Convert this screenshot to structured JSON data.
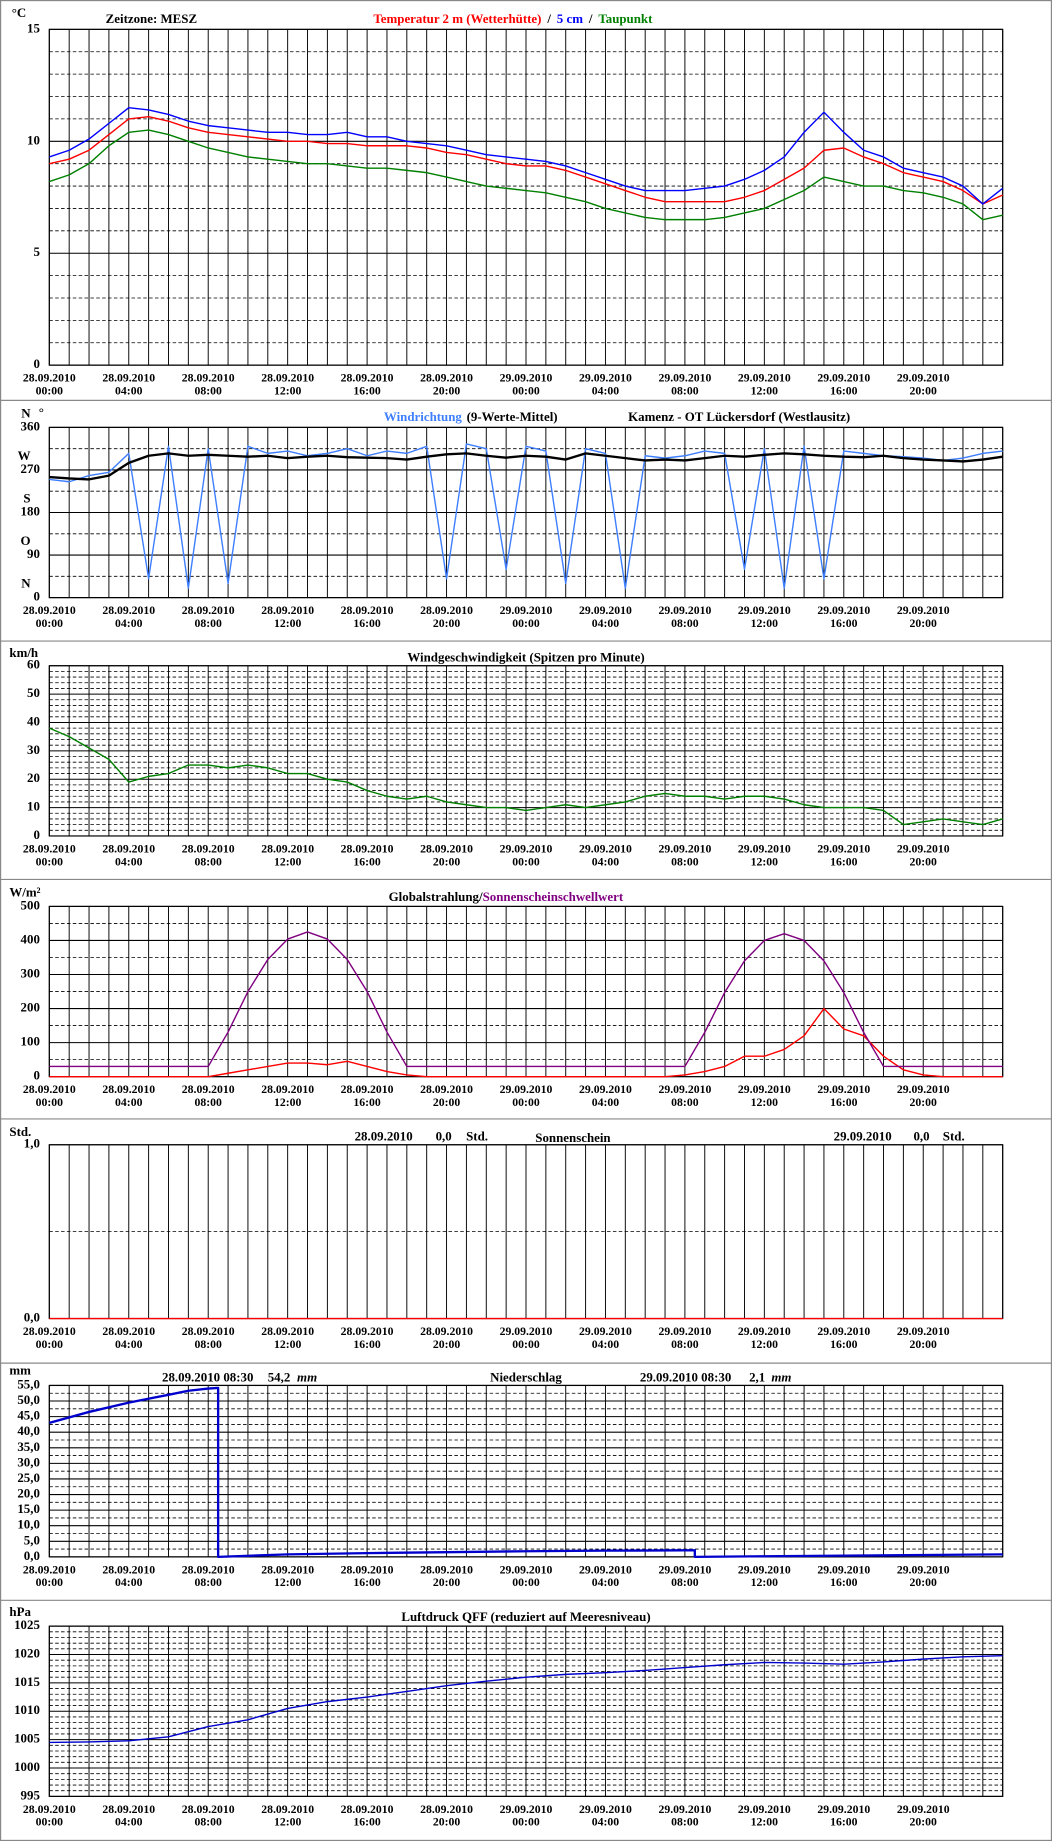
{
  "x_axis": {
    "xlim": [
      0,
      48
    ],
    "xticks": [
      {
        "value": 0,
        "label": "28.09.2010\n00:00"
      },
      {
        "value": 4,
        "label": "28.09.2010\n04:00"
      },
      {
        "value": 8,
        "label": "28.09.2010\n08:00"
      },
      {
        "value": 12,
        "label": "28.09.2010\n12:00"
      },
      {
        "value": 16,
        "label": "28.09.2010\n16:00"
      },
      {
        "value": 20,
        "label": "28.09.2010\n20:00"
      },
      {
        "value": 24,
        "label": "29.09.2010\n00:00"
      },
      {
        "value": 28,
        "label": "29.09.2010\n04:00"
      },
      {
        "value": 32,
        "label": "29.09.2010\n08:00"
      },
      {
        "value": 36,
        "label": "29.09.2010\n12:00"
      },
      {
        "value": 40,
        "label": "29.09.2010\n16:00"
      },
      {
        "value": 44,
        "label": "29.09.2010\n20:00"
      }
    ],
    "xgrid": [
      0,
      1,
      2,
      3,
      4,
      5,
      6,
      7,
      8,
      9,
      10,
      11,
      12,
      13,
      14,
      15,
      16,
      17,
      18,
      19,
      20,
      21,
      22,
      23,
      24,
      25,
      26,
      27,
      28,
      29,
      30,
      31,
      32,
      33,
      34,
      35,
      36,
      37,
      38,
      39,
      40,
      41,
      42,
      43,
      44,
      45,
      46,
      47,
      48
    ]
  },
  "chart_data": [
    {
      "type": "line",
      "y_unit": "°C",
      "annotations": [
        "Zeitzone: MESZ"
      ],
      "separator": "/",
      "ylim": [
        0,
        15
      ],
      "yticks": [
        0,
        5,
        10,
        15
      ],
      "minor_yticks": [
        1,
        2,
        3,
        4,
        6,
        7,
        8,
        9,
        11,
        12,
        13,
        14
      ],
      "x": [
        0,
        1,
        2,
        3,
        4,
        5,
        6,
        7,
        8,
        9,
        10,
        11,
        12,
        13,
        14,
        15,
        16,
        17,
        18,
        19,
        20,
        21,
        22,
        23,
        24,
        25,
        26,
        27,
        28,
        29,
        30,
        31,
        32,
        33,
        34,
        35,
        36,
        37,
        38,
        39,
        40,
        41,
        42,
        43,
        44,
        45,
        46,
        47,
        48
      ],
      "series": [
        {
          "name": "Temperatur 2 m (Wetterhütte)",
          "color": "#ff0000",
          "values": [
            9.0,
            9.2,
            9.6,
            10.3,
            11.0,
            11.1,
            10.9,
            10.6,
            10.4,
            10.3,
            10.2,
            10.1,
            10.0,
            10.0,
            9.9,
            9.9,
            9.8,
            9.8,
            9.8,
            9.7,
            9.5,
            9.4,
            9.2,
            9.0,
            8.9,
            8.9,
            8.7,
            8.4,
            8.1,
            7.8,
            7.5,
            7.3,
            7.3,
            7.3,
            7.3,
            7.5,
            7.8,
            8.3,
            8.8,
            9.6,
            9.7,
            9.3,
            9.0,
            8.6,
            8.4,
            8.2,
            7.8,
            7.2,
            7.6
          ]
        },
        {
          "name": "5 cm",
          "color": "#0000ff",
          "values": [
            9.3,
            9.6,
            10.1,
            10.8,
            11.5,
            11.4,
            11.2,
            10.9,
            10.7,
            10.6,
            10.5,
            10.4,
            10.4,
            10.3,
            10.3,
            10.4,
            10.2,
            10.2,
            10.0,
            9.9,
            9.8,
            9.6,
            9.4,
            9.3,
            9.2,
            9.1,
            8.9,
            8.6,
            8.3,
            8.0,
            7.8,
            7.8,
            7.8,
            7.9,
            8.0,
            8.3,
            8.7,
            9.3,
            10.4,
            11.3,
            10.4,
            9.6,
            9.3,
            8.8,
            8.6,
            8.4,
            8.0,
            7.2,
            7.9
          ]
        },
        {
          "name": "Taupunkt",
          "color": "#008000",
          "values": [
            8.2,
            8.5,
            9.0,
            9.8,
            10.4,
            10.5,
            10.3,
            10.0,
            9.7,
            9.5,
            9.3,
            9.2,
            9.1,
            9.0,
            9.0,
            8.9,
            8.8,
            8.8,
            8.7,
            8.6,
            8.4,
            8.2,
            8.0,
            7.9,
            7.8,
            7.7,
            7.5,
            7.3,
            7.0,
            6.8,
            6.6,
            6.5,
            6.5,
            6.5,
            6.6,
            6.8,
            7.0,
            7.4,
            7.8,
            8.4,
            8.2,
            8.0,
            8.0,
            7.8,
            7.7,
            7.5,
            7.2,
            6.5,
            6.7
          ]
        }
      ]
    },
    {
      "type": "line",
      "y_unit": "°",
      "annotations": [
        "Kamenz - OT Lückersdorf (Westlausitz)"
      ],
      "ylim": [
        0,
        360
      ],
      "yticks": [
        0,
        90,
        180,
        270,
        360
      ],
      "ytick_names": [
        "N",
        "O",
        "S",
        "W",
        "N"
      ],
      "minor_yticks": [
        45,
        135,
        225,
        315
      ],
      "x": [
        0,
        1,
        2,
        3,
        4,
        5,
        6,
        7,
        8,
        9,
        10,
        11,
        12,
        13,
        14,
        15,
        16,
        17,
        18,
        19,
        20,
        21,
        22,
        23,
        24,
        25,
        26,
        27,
        28,
        29,
        30,
        31,
        32,
        33,
        34,
        35,
        36,
        37,
        38,
        39,
        40,
        41,
        42,
        43,
        44,
        45,
        46,
        47,
        48
      ],
      "series": [
        {
          "name": "Windrichtung",
          "color": "#3f7fff",
          "values": [
            250,
            245,
            258,
            265,
            305,
            40,
            320,
            20,
            315,
            30,
            320,
            305,
            310,
            300,
            305,
            315,
            300,
            310,
            305,
            320,
            40,
            325,
            315,
            60,
            320,
            310,
            30,
            315,
            305,
            20,
            300,
            295,
            300,
            310,
            305,
            60,
            315,
            20,
            320,
            40,
            310,
            305,
            300,
            298,
            295,
            290,
            295,
            305,
            310
          ]
        },
        {
          "name": "(9-Werte-Mittel)",
          "color": "#000000",
          "values": [
            255,
            252,
            250,
            258,
            285,
            300,
            305,
            300,
            302,
            300,
            298,
            300,
            295,
            298,
            300,
            297,
            296,
            295,
            292,
            298,
            303,
            305,
            300,
            296,
            300,
            298,
            292,
            305,
            300,
            295,
            290,
            292,
            290,
            295,
            300,
            298,
            302,
            305,
            303,
            300,
            298,
            297,
            300,
            295,
            292,
            290,
            288,
            292,
            298
          ]
        }
      ]
    },
    {
      "type": "line",
      "title": "Windgeschwindigkeit (Spitzen pro Minute)",
      "y_unit": "km/h",
      "ylim": [
        0,
        60
      ],
      "yticks": [
        0,
        10,
        20,
        30,
        40,
        50,
        60
      ],
      "minor_yticks": [
        2,
        4,
        6,
        8,
        12,
        14,
        16,
        18,
        22,
        24,
        26,
        28,
        32,
        34,
        36,
        38,
        42,
        44,
        46,
        48,
        52,
        54,
        56,
        58
      ],
      "x": [
        0,
        1,
        2,
        3,
        4,
        5,
        6,
        7,
        8,
        9,
        10,
        11,
        12,
        13,
        14,
        15,
        16,
        17,
        18,
        19,
        20,
        21,
        22,
        23,
        24,
        25,
        26,
        27,
        28,
        29,
        30,
        31,
        32,
        33,
        34,
        35,
        36,
        37,
        38,
        39,
        40,
        41,
        42,
        43,
        44,
        45,
        46,
        47,
        48
      ],
      "series": [
        {
          "color": "#008000",
          "values": [
            38,
            35,
            31,
            27,
            19,
            21,
            22,
            25,
            25,
            24,
            25,
            24,
            22,
            22,
            20,
            19,
            16,
            14,
            13,
            14,
            12,
            11,
            10,
            10,
            9,
            10,
            11,
            10,
            11,
            12,
            14,
            15,
            14,
            14,
            13,
            14,
            14,
            13,
            11,
            10,
            10,
            10,
            9,
            4,
            5,
            6,
            5,
            4,
            6
          ]
        }
      ]
    },
    {
      "type": "line",
      "y_unit": "W/m²",
      "separator": "/",
      "ylim": [
        0,
        500
      ],
      "yticks": [
        0,
        100,
        200,
        300,
        400,
        500
      ],
      "minor_yticks": [
        50,
        150,
        250,
        350,
        450
      ],
      "x": [
        0,
        1,
        2,
        3,
        4,
        5,
        6,
        7,
        8,
        9,
        10,
        11,
        12,
        13,
        14,
        15,
        16,
        17,
        18,
        19,
        20,
        21,
        22,
        23,
        24,
        25,
        26,
        27,
        28,
        29,
        30,
        31,
        32,
        33,
        34,
        35,
        36,
        37,
        38,
        39,
        40,
        41,
        42,
        43,
        44,
        45,
        46,
        47,
        48
      ],
      "series": [
        {
          "name": "Globalstrahlung",
          "color": "#ff0000",
          "legend_color": "#000000",
          "values": [
            0,
            0,
            0,
            0,
            0,
            0,
            0,
            0,
            0,
            10,
            20,
            30,
            40,
            40,
            35,
            45,
            30,
            15,
            5,
            0,
            0,
            0,
            0,
            0,
            0,
            0,
            0,
            0,
            0,
            0,
            0,
            0,
            5,
            15,
            30,
            60,
            60,
            80,
            120,
            200,
            140,
            120,
            60,
            20,
            5,
            0,
            0,
            0,
            0
          ]
        },
        {
          "name": "Sonnenscheinschwellwert",
          "color": "#800080",
          "values": [
            30,
            30,
            30,
            30,
            30,
            30,
            30,
            30,
            30,
            131,
            250,
            344,
            404,
            425,
            404,
            344,
            250,
            131,
            30,
            30,
            30,
            30,
            30,
            30,
            30,
            30,
            30,
            30,
            30,
            30,
            30,
            30,
            30,
            130,
            247,
            340,
            400,
            420,
            400,
            340,
            247,
            130,
            30,
            30,
            30,
            30,
            30,
            30,
            30
          ]
        }
      ]
    },
    {
      "type": "line",
      "title": "Sonnenschein",
      "y_unit": "Std.",
      "annotations": [
        "28.09.2010",
        "0,0",
        "Std.",
        "29.09.2010",
        "0,0",
        "Std."
      ],
      "ylim": [
        0,
        1
      ],
      "yticks": [
        {
          "value": 0,
          "label": "0,0"
        },
        {
          "value": 1,
          "label": "1,0"
        }
      ],
      "minor_yticks": [
        0.5
      ],
      "x": [
        0,
        1,
        2,
        3,
        4,
        5,
        6,
        7,
        8,
        9,
        10,
        11,
        12,
        13,
        14,
        15,
        16,
        17,
        18,
        19,
        20,
        21,
        22,
        23,
        24,
        25,
        26,
        27,
        28,
        29,
        30,
        31,
        32,
        33,
        34,
        35,
        36,
        37,
        38,
        39,
        40,
        41,
        42,
        43,
        44,
        45,
        46,
        47,
        48
      ],
      "series": [
        {
          "color": "#ff0000",
          "values": [
            0,
            0,
            0,
            0,
            0,
            0,
            0,
            0,
            0,
            0,
            0,
            0,
            0,
            0,
            0,
            0,
            0,
            0,
            0,
            0,
            0,
            0,
            0,
            0,
            0,
            0,
            0,
            0,
            0,
            0,
            0,
            0,
            0,
            0,
            0,
            0,
            0,
            0,
            0,
            0,
            0,
            0,
            0,
            0,
            0,
            0,
            0,
            0,
            0
          ]
        }
      ]
    },
    {
      "type": "line",
      "title": "Niederschlag",
      "y_unit": "mm",
      "annotations": [
        "28.09.2010 08:30",
        "54,2",
        "mm",
        "29.09.2010 08:30",
        "2,1",
        "mm"
      ],
      "ylim": [
        0,
        55
      ],
      "yticks": [
        {
          "value": 0,
          "label": "0,0"
        },
        {
          "value": 5,
          "label": "5,0"
        },
        {
          "value": 10,
          "label": "10,0"
        },
        {
          "value": 15,
          "label": "15,0"
        },
        {
          "value": 20,
          "label": "20,0"
        },
        {
          "value": 25,
          "label": "25,0"
        },
        {
          "value": 30,
          "label": "30,0"
        },
        {
          "value": 35,
          "label": "35,0"
        },
        {
          "value": 40,
          "label": "40,0"
        },
        {
          "value": 45,
          "label": "45,0"
        },
        {
          "value": 50,
          "label": "50,0"
        },
        {
          "value": 55,
          "label": "55,0"
        }
      ],
      "minor_yticks": [
        2.5,
        7.5,
        12.5,
        17.5,
        22.5,
        27.5,
        32.5,
        37.5,
        42.5,
        47.5,
        52.5
      ],
      "x": [
        0,
        2,
        4,
        6,
        7,
        8,
        8.5,
        8.5,
        12,
        16,
        20,
        24,
        28,
        32,
        32.5,
        32.5,
        36,
        40,
        44,
        48
      ],
      "series": [
        {
          "color": "#0000cc",
          "values": [
            43.0,
            46.5,
            49.5,
            52.0,
            53.3,
            54.0,
            54.2,
            0,
            0.8,
            1.2,
            1.5,
            1.8,
            2.0,
            2.1,
            2.1,
            0,
            0.2,
            0.4,
            0.6,
            0.8
          ]
        }
      ]
    },
    {
      "type": "line",
      "title": "Luftdruck QFF (reduziert auf Meeresniveau)",
      "y_unit": "hPa",
      "ylim": [
        995,
        1025
      ],
      "yticks": [
        995,
        1000,
        1005,
        1010,
        1015,
        1020,
        1025
      ],
      "minor_yticks": [
        996,
        997,
        998,
        999,
        1001,
        1002,
        1003,
        1004,
        1006,
        1007,
        1008,
        1009,
        1011,
        1012,
        1013,
        1014,
        1016,
        1017,
        1018,
        1019,
        1021,
        1022,
        1023,
        1024
      ],
      "x": [
        0,
        2,
        4,
        6,
        8,
        10,
        12,
        14,
        16,
        18,
        20,
        22,
        24,
        26,
        28,
        30,
        32,
        34,
        36,
        38,
        40,
        42,
        44,
        46,
        48
      ],
      "series": [
        {
          "color": "#0000cc",
          "values": [
            1004.5,
            1004.6,
            1004.8,
            1005.5,
            1007.3,
            1008.5,
            1010.5,
            1011.7,
            1012.5,
            1013.5,
            1014.5,
            1015.3,
            1016.0,
            1016.5,
            1016.8,
            1017.2,
            1017.7,
            1018.2,
            1018.6,
            1018.5,
            1018.3,
            1018.7,
            1019.2,
            1019.6,
            1019.8
          ]
        }
      ]
    }
  ]
}
